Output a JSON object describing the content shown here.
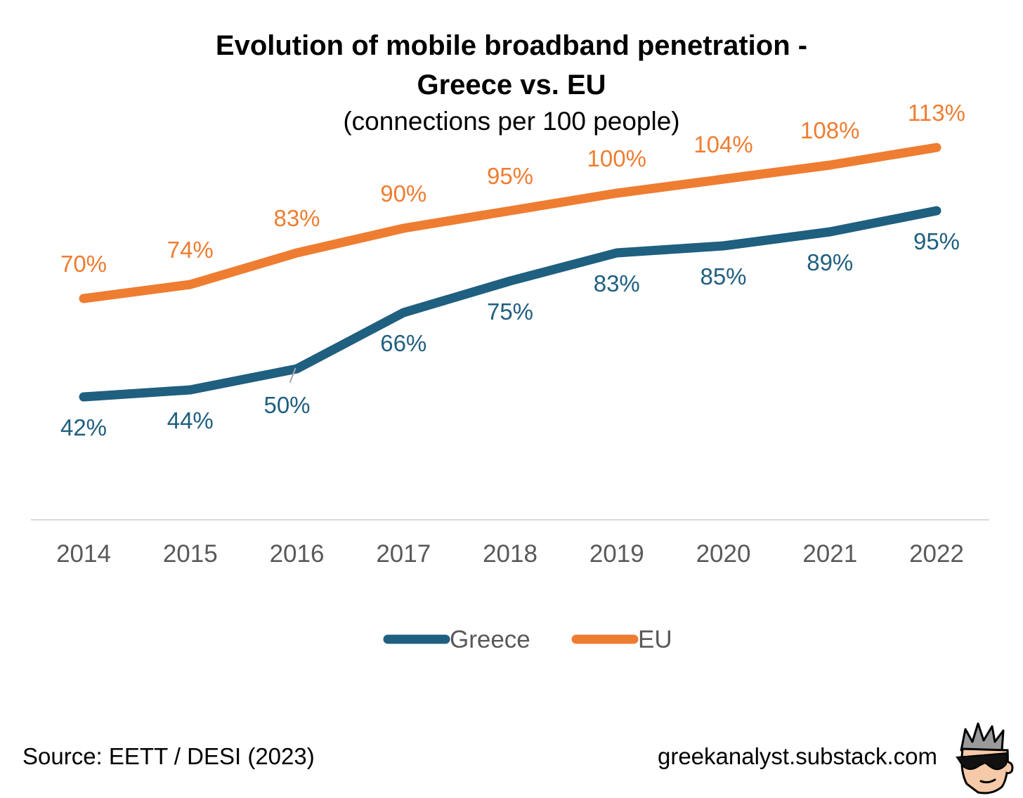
{
  "chart_data": {
    "type": "line",
    "title": "Evolution of mobile broadband penetration - Greece vs. EU",
    "title_lines": [
      "Evolution of mobile broadband penetration -",
      "Greece vs. EU"
    ],
    "subtitle": "(connections per 100 people)",
    "xlabel": "",
    "ylabel": "",
    "x": [
      "2014",
      "2015",
      "2016",
      "2017",
      "2018",
      "2019",
      "2020",
      "2021",
      "2022"
    ],
    "ylim": [
      0,
      125
    ],
    "grid": false,
    "legend_position": "bottom",
    "series": [
      {
        "name": "Greece",
        "color": "#1f5f7f",
        "values": [
          42,
          44,
          50,
          66,
          75,
          83,
          85,
          89,
          95
        ],
        "labels": [
          "42%",
          "44%",
          "50%",
          "66%",
          "75%",
          "83%",
          "85%",
          "89%",
          "95%"
        ]
      },
      {
        "name": "EU",
        "color": "#ee7d31",
        "values": [
          70,
          74,
          83,
          90,
          95,
          100,
          104,
          108,
          113
        ],
        "labels": [
          "70%",
          "74%",
          "83%",
          "90%",
          "95%",
          "100%",
          "104%",
          "108%",
          "113%"
        ]
      }
    ]
  },
  "footer": {
    "source": "Source: EETT / DESI (2023)",
    "site": "greekanalyst.substack.com",
    "logo_icon": "sunglasses-avatar-icon"
  }
}
